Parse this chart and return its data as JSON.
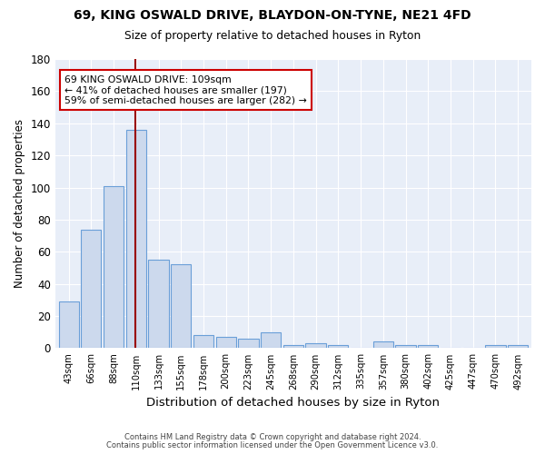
{
  "title1": "69, KING OSWALD DRIVE, BLAYDON-ON-TYNE, NE21 4FD",
  "title2": "Size of property relative to detached houses in Ryton",
  "xlabel": "Distribution of detached houses by size in Ryton",
  "ylabel": "Number of detached properties",
  "bin_labels": [
    "43sqm",
    "66sqm",
    "88sqm",
    "110sqm",
    "133sqm",
    "155sqm",
    "178sqm",
    "200sqm",
    "223sqm",
    "245sqm",
    "268sqm",
    "290sqm",
    "312sqm",
    "335sqm",
    "357sqm",
    "380sqm",
    "402sqm",
    "425sqm",
    "447sqm",
    "470sqm",
    "492sqm"
  ],
  "bar_heights": [
    29,
    74,
    101,
    136,
    55,
    52,
    8,
    7,
    6,
    10,
    2,
    3,
    2,
    0,
    4,
    2,
    2,
    0,
    0,
    2,
    2
  ],
  "bar_color": "#ccd9ed",
  "bar_edge_color": "#6a9fd8",
  "property_line_label": "69 KING OSWALD DRIVE: 109sqm",
  "annotation_line1": "← 41% of detached houses are smaller (197)",
  "annotation_line2": "59% of semi-detached houses are larger (282) →",
  "annotation_box_color": "white",
  "annotation_box_edge": "#cc0000",
  "vline_color": "#990000",
  "ylim": [
    0,
    180
  ],
  "yticks": [
    0,
    20,
    40,
    60,
    80,
    100,
    120,
    140,
    160,
    180
  ],
  "footnote1": "Contains HM Land Registry data © Crown copyright and database right 2024.",
  "footnote2": "Contains public sector information licensed under the Open Government Licence v3.0.",
  "bg_color": "#ffffff",
  "plot_bg_color": "#e8eef8"
}
